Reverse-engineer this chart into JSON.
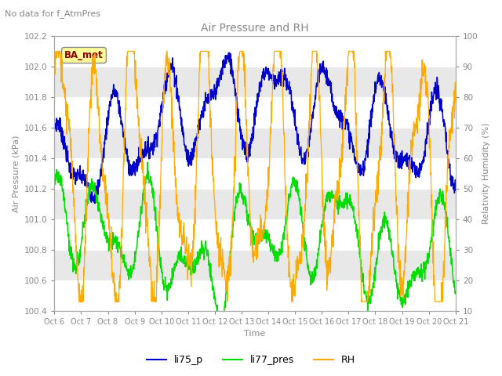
{
  "title": "Air Pressure and RH",
  "subtitle": "No data for f_AtmPres",
  "xlabel": "Time",
  "ylabel_left": "Air Pressure (kPa)",
  "ylabel_right": "Relativity Humidity (%)",
  "ylim_left": [
    100.4,
    102.2
  ],
  "ylim_right": [
    10,
    100
  ],
  "yticks_left": [
    100.4,
    100.6,
    100.8,
    101.0,
    101.2,
    101.4,
    101.6,
    101.8,
    102.0,
    102.2
  ],
  "yticks_right": [
    10,
    20,
    30,
    40,
    50,
    60,
    70,
    80,
    90,
    100
  ],
  "xtick_labels": [
    "Oct 6",
    "Oct 7",
    "Oct 8",
    "Oct 9",
    "Oct 10",
    "Oct 11",
    "Oct 12",
    "Oct 13",
    "Oct 14",
    "Oct 15",
    "Oct 16",
    "Oct 17",
    "Oct 18",
    "Oct 19",
    "Oct 20",
    "Oct 21"
  ],
  "annotation_box": "BA_met",
  "annotation_box_color": "#ffff99",
  "annotation_box_text_color": "#8b0000",
  "plot_bg_color": "#ffffff",
  "band_color": "#e8e8e8",
  "line_blue": "#0000cc",
  "line_green": "#00dd00",
  "line_orange": "#ffaa00",
  "legend_labels": [
    "li75_p",
    "li77_pres",
    "RH"
  ],
  "title_color": "#888888",
  "subtitle_color": "#888888",
  "tick_color": "#888888",
  "axis_label_color": "#888888"
}
